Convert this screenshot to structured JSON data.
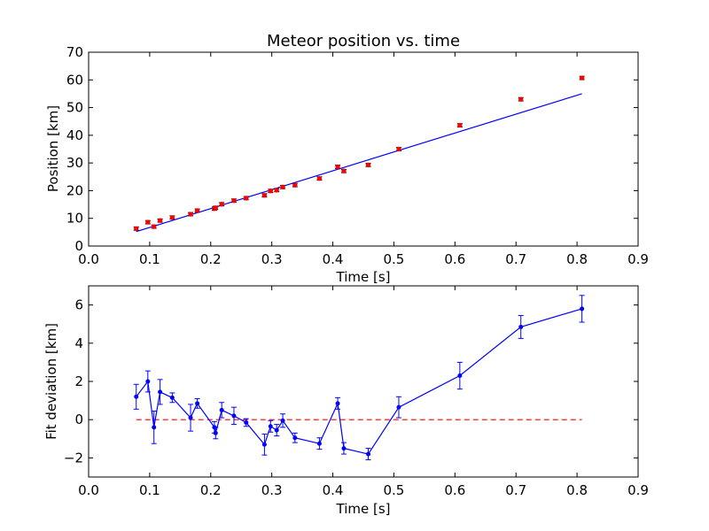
{
  "chart_data": [
    {
      "type": "scatter",
      "title": "Meteor position vs. time",
      "xlabel": "Time [s]",
      "ylabel": "Position [km]",
      "xlim": [
        0.0,
        0.9
      ],
      "ylim": [
        0,
        70
      ],
      "x_ticks": [
        "0.0",
        "0.1",
        "0.2",
        "0.3",
        "0.4",
        "0.5",
        "0.6",
        "0.7",
        "0.8",
        "0.9"
      ],
      "y_ticks": [
        "0",
        "10",
        "20",
        "30",
        "40",
        "50",
        "60",
        "70"
      ],
      "grid": false,
      "colors": {
        "points": "#ff0000",
        "fit": "#0000ff"
      },
      "series": [
        {
          "kind": "points_with_errorbars",
          "x": [
            0.078,
            0.097,
            0.107,
            0.117,
            0.137,
            0.167,
            0.178,
            0.206,
            0.208,
            0.218,
            0.238,
            0.258,
            0.288,
            0.298,
            0.308,
            0.318,
            0.338,
            0.378,
            0.408,
            0.418,
            0.458,
            0.508,
            0.608,
            0.708,
            0.808
          ],
          "y": [
            6.3,
            8.6,
            7.0,
            9.2,
            10.3,
            11.5,
            12.8,
            13.5,
            13.8,
            15.1,
            16.4,
            17.3,
            18.3,
            19.9,
            20.2,
            21.3,
            22.0,
            24.4,
            28.6,
            27.1,
            29.3,
            35.0,
            43.6,
            53.0,
            60.7
          ],
          "yerr": 0.6
        },
        {
          "kind": "fit_line",
          "x": [
            0.078,
            0.808
          ],
          "y": [
            5.2,
            55.0
          ]
        }
      ]
    },
    {
      "type": "line",
      "xlabel": "Time [s]",
      "ylabel": "Fit deviation [km]",
      "xlim": [
        0.0,
        0.9
      ],
      "ylim": [
        -3,
        7
      ],
      "x_ticks": [
        "0.0",
        "0.1",
        "0.2",
        "0.3",
        "0.4",
        "0.5",
        "0.6",
        "0.7",
        "0.8",
        "0.9"
      ],
      "y_ticks": [
        "−2",
        "0",
        "2",
        "4",
        "6"
      ],
      "grid": false,
      "colors": {
        "line": "#0000ff",
        "zero": "#ff0000"
      },
      "series": [
        {
          "kind": "line_with_errorbars",
          "x": [
            0.078,
            0.097,
            0.107,
            0.117,
            0.137,
            0.167,
            0.178,
            0.206,
            0.208,
            0.218,
            0.238,
            0.258,
            0.288,
            0.298,
            0.308,
            0.318,
            0.338,
            0.378,
            0.408,
            0.418,
            0.458,
            0.508,
            0.608,
            0.708,
            0.808
          ],
          "y": [
            1.2,
            2.0,
            -0.4,
            1.45,
            1.15,
            0.1,
            0.85,
            -0.4,
            -0.7,
            0.5,
            0.2,
            -0.15,
            -1.3,
            -0.35,
            -0.55,
            -0.05,
            -0.95,
            -1.25,
            0.85,
            -1.5,
            -1.8,
            0.65,
            2.3,
            4.85,
            5.8
          ],
          "yerr": [
            0.65,
            0.55,
            0.85,
            0.65,
            0.25,
            0.7,
            0.25,
            0.3,
            0.3,
            0.4,
            0.45,
            0.2,
            0.55,
            0.3,
            0.3,
            0.35,
            0.25,
            0.3,
            0.3,
            0.3,
            0.3,
            0.55,
            0.7,
            0.6,
            0.7
          ]
        },
        {
          "kind": "zero_line",
          "x": [
            0.078,
            0.808
          ],
          "y": [
            0,
            0
          ]
        }
      ]
    }
  ]
}
